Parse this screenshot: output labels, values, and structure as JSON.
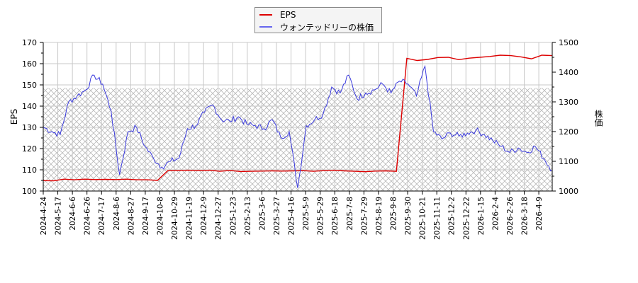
{
  "legend": {
    "items": [
      {
        "label": "EPS",
        "color": "#dd0000"
      },
      {
        "label": "ウォンテッドリーの株価",
        "color": "#3333dd"
      }
    ]
  },
  "axes": {
    "left_label": "EPS",
    "right_label": "株価"
  },
  "chart_data": {
    "type": "line",
    "title": "",
    "xlabel": "",
    "ylabel": "EPS",
    "ylabel_right": "株価",
    "ylim": [
      100,
      170
    ],
    "ylim_right": [
      1000,
      1500
    ],
    "yticks_left": [
      100,
      110,
      120,
      130,
      140,
      150,
      160,
      170
    ],
    "yticks_right": [
      1000,
      1100,
      1200,
      1300,
      1400,
      1500
    ],
    "grid": true,
    "legend_position": "top-center",
    "hatch_region_below_eps": 148.5,
    "x_tick_labels": [
      "2024-4-24",
      "2024-5-17",
      "2024-6-6",
      "2024-6-26",
      "2024-7-17",
      "2024-8-6",
      "2024-8-27",
      "2024-9-17",
      "2024-10-8",
      "2024-10-29",
      "2024-11-19",
      "2024-12-9",
      "2024-12-27",
      "2025-1-23",
      "2025-2-13",
      "2025-3-6",
      "2025-3-27",
      "2025-4-16",
      "2025-5-9",
      "2025-5-29",
      "2025-6-18",
      "2025-7-8",
      "2025-7-29",
      "2025-8-19",
      "2025-9-8",
      "2025-9-30",
      "2025-10-21",
      "2025-11-11",
      "2025-12-2",
      "2025-12-22",
      "2026-1-15",
      "2026-2-4",
      "2026-2-26",
      "2026-3-18",
      "2026-4-9"
    ],
    "series": [
      {
        "name": "EPS",
        "axis": "left",
        "color": "#dd0000",
        "values": [
          104.9,
          104.8,
          105.6,
          105.3,
          105.6,
          105.4,
          105.5,
          105.4,
          105.6,
          105.3,
          105.3,
          105.0,
          109.6,
          109.7,
          109.8,
          109.6,
          109.8,
          109.3,
          109.7,
          109.2,
          109.3,
          109.4,
          109.5,
          109.4,
          109.5,
          109.6,
          109.3,
          109.6,
          109.8,
          109.5,
          109.3,
          109.1,
          109.4,
          109.5,
          109.3,
          162.5,
          161.5,
          162.0,
          162.9,
          163.0,
          161.9,
          162.6,
          163.0,
          163.4,
          164.0,
          163.8,
          163.2,
          162.3,
          164.0,
          163.8
        ]
      },
      {
        "name": "ウォンテッドリーの株価",
        "axis": "right",
        "color": "#3333dd",
        "values": [
          1215,
          1200,
          1190,
          1300,
          1320,
          1340,
          1390,
          1360,
          1270,
          1055,
          1200,
          1215,
          1150,
          1110,
          1080,
          1100,
          1110,
          1210,
          1220,
          1265,
          1290,
          1240,
          1235,
          1250,
          1225,
          1220,
          1210,
          1240,
          1180,
          1200,
          1010,
          1220,
          1240,
          1260,
          1350,
          1330,
          1390,
          1310,
          1330,
          1340,
          1360,
          1330,
          1370,
          1360,
          1320,
          1420,
          1200,
          1175,
          1195,
          1185,
          1195,
          1205,
          1190,
          1170,
          1150,
          1130,
          1145,
          1130,
          1150,
          1110,
          1070
        ]
      }
    ]
  }
}
